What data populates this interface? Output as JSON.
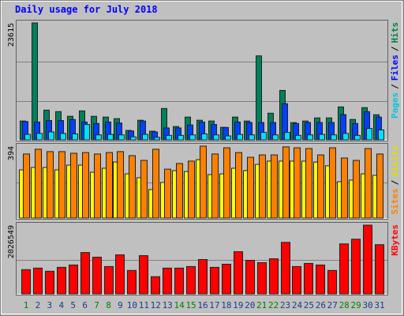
{
  "chart_data": [
    {
      "type": "bar",
      "title": "Daily usage for July 2018",
      "legend_separator": "/",
      "ylim": [
        0,
        23615
      ],
      "yticks": [
        23615
      ],
      "series": [
        {
          "name": "Hits",
          "color": "#00805c",
          "text_color": "#008040",
          "values": [
            3800,
            23615,
            6000,
            5700,
            4750,
            5850,
            4750,
            4600,
            4280,
            1900,
            3960,
            1740,
            6330,
            2690,
            4600,
            3960,
            3800,
            2530,
            4600,
            3800,
            16960,
            5380,
            9980,
            3480,
            3800,
            4430,
            4430,
            6650,
            4120,
            6500,
            5070
          ]
        },
        {
          "name": "Files",
          "color": "#0040ff",
          "text_color": "#0000ff",
          "values": [
            3700,
            3600,
            3900,
            3900,
            4100,
            3600,
            3300,
            3600,
            3400,
            1800,
            3800,
            1600,
            2400,
            2400,
            3000,
            3600,
            3100,
            2500,
            3600,
            3500,
            3500,
            3500,
            7300,
            3300,
            3500,
            3500,
            3500,
            5100,
            3300,
            5700,
            4600
          ]
        },
        {
          "name": "Pages",
          "color": "#00e0ff",
          "text_color": "#00c8e0",
          "values": [
            1100,
            1300,
            1600,
            1300,
            1200,
            3100,
            1000,
            1100,
            1000,
            600,
            1100,
            500,
            900,
            900,
            1000,
            1200,
            1000,
            800,
            1100,
            1000,
            1500,
            1000,
            1500,
            900,
            1000,
            1100,
            1000,
            1300,
            900,
            2300,
            2000
          ]
        }
      ]
    },
    {
      "type": "bar",
      "legend_separator": "/",
      "ylim": [
        0,
        394
      ],
      "yticks": [
        394
      ],
      "series": [
        {
          "name": "Visits",
          "color": "#ffff00",
          "text_color": "#e0e000",
          "values": [
            264,
            277,
            277,
            264,
            290,
            290,
            251,
            273,
            307,
            242,
            221,
            156,
            195,
            260,
            255,
            320,
            238,
            242,
            273,
            260,
            294,
            312,
            312,
            312,
            312,
            307,
            286,
            199,
            208,
            242,
            234
          ]
        },
        {
          "name": "Sites",
          "color": "#ff8000",
          "text_color": "#ff8000",
          "values": [
            351,
            377,
            364,
            364,
            355,
            359,
            351,
            359,
            364,
            342,
            316,
            377,
            268,
            299,
            312,
            394,
            351,
            385,
            359,
            333,
            346,
            346,
            390,
            385,
            381,
            346,
            385,
            329,
            316,
            381,
            351
          ]
        }
      ]
    },
    {
      "type": "bar",
      "ylim": [
        0,
        2026549
      ],
      "yticks": [
        2026549
      ],
      "categories": [
        "1",
        "2",
        "3",
        "4",
        "5",
        "6",
        "7",
        "8",
        "9",
        "10",
        "11",
        "12",
        "13",
        "14",
        "15",
        "16",
        "17",
        "18",
        "19",
        "20",
        "21",
        "22",
        "23",
        "24",
        "25",
        "26",
        "27",
        "28",
        "29",
        "30",
        "31"
      ],
      "category_colors": [
        "#008000",
        "#1a3c8c",
        "#1a3c8c",
        "#1a3c8c",
        "#1a3c8c",
        "#1a3c8c",
        "#008000",
        "#008000",
        "#1a3c8c",
        "#1a3c8c",
        "#1a3c8c",
        "#1a3c8c",
        "#1a3c8c",
        "#008000",
        "#008000",
        "#1a3c8c",
        "#1a3c8c",
        "#1a3c8c",
        "#1a3c8c",
        "#1a3c8c",
        "#008000",
        "#008000",
        "#1a3c8c",
        "#1a3c8c",
        "#1a3c8c",
        "#1a3c8c",
        "#1a3c8c",
        "#008000",
        "#008000",
        "#1a3c8c",
        "#1a3c8c"
      ],
      "series": [
        {
          "name": "KBytes",
          "color": "#ff0000",
          "text_color": "#ff0000",
          "values": [
            714000,
            760000,
            668000,
            783000,
            852000,
            1220000,
            1082000,
            806000,
            1151000,
            691000,
            1128000,
            507000,
            760000,
            760000,
            806000,
            1013000,
            783000,
            875000,
            1244000,
            990000,
            921000,
            1036000,
            1520000,
            806000,
            898000,
            852000,
            691000,
            1474000,
            1612000,
            2026549,
            1451000
          ]
        }
      ]
    }
  ]
}
